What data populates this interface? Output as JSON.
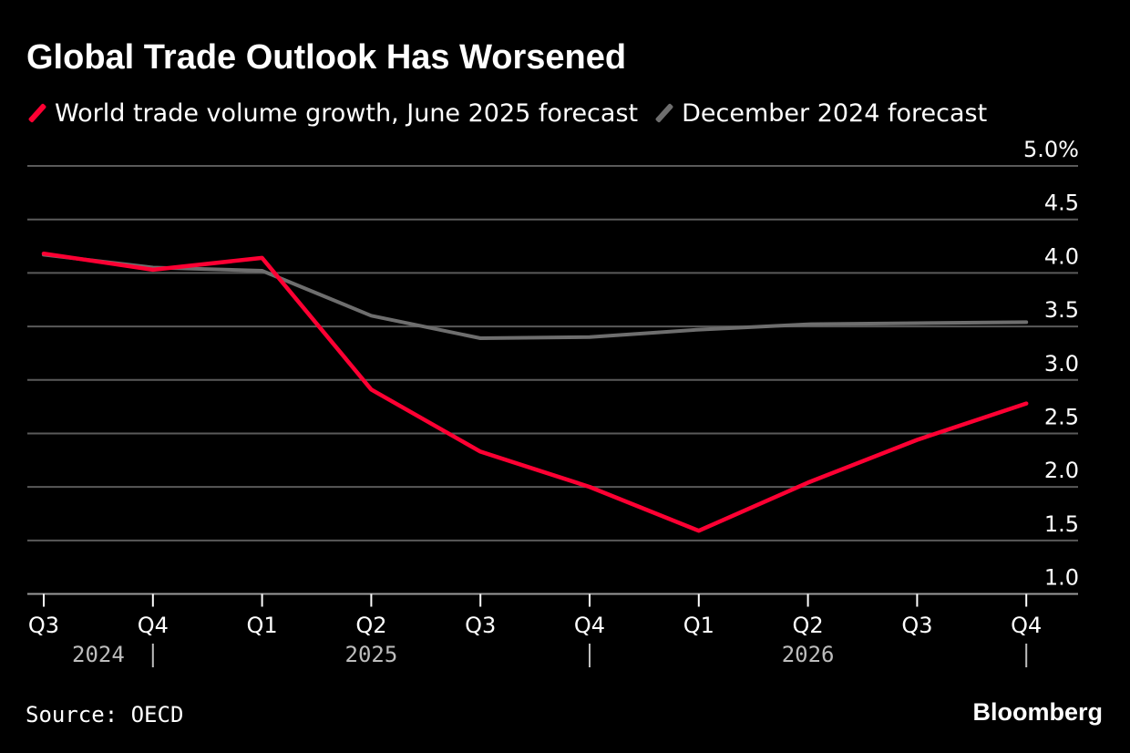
{
  "chart_data": {
    "type": "line",
    "title": "Global Trade Outlook Has Worsened",
    "categories": [
      "Q3",
      "Q4",
      "Q1",
      "Q2",
      "Q3",
      "Q4",
      "Q1",
      "Q2",
      "Q3",
      "Q4"
    ],
    "years": [
      {
        "label": "2024",
        "center_index": 0.5
      },
      {
        "label": "2025",
        "center_index": 3.0
      },
      {
        "label": "2026",
        "center_index": 7.0
      }
    ],
    "year_separators": [
      1,
      5,
      9
    ],
    "series": [
      {
        "name": "World trade volume growth, June 2025 forecast",
        "color": "#ff0033",
        "values": [
          4.18,
          4.03,
          4.14,
          2.91,
          2.33,
          2.0,
          1.59,
          2.04,
          2.44,
          2.78
        ]
      },
      {
        "name": "December 2024 forecast",
        "color": "#6e6e6e",
        "values": [
          4.17,
          4.05,
          4.02,
          3.6,
          3.39,
          3.4,
          3.47,
          3.52,
          3.53,
          3.54
        ]
      }
    ],
    "ylim": [
      0.8,
      5.0
    ],
    "yticks": [
      1.0,
      1.5,
      2.0,
      2.5,
      3.0,
      3.5,
      4.0,
      4.5,
      5.0
    ],
    "ytick_labels": [
      "1.0",
      "1.5",
      "2.0",
      "2.5",
      "3.0",
      "3.5",
      "4.0",
      "4.5",
      "5.0%"
    ],
    "gridlines": [
      1.5,
      2.0,
      2.5,
      3.0,
      3.5,
      4.0,
      4.5,
      5.0
    ],
    "xlabel": "",
    "ylabel": "",
    "legend": "top-left"
  },
  "source": "Source: OECD",
  "brand": "Bloomberg",
  "colors": {
    "background": "#000000",
    "grid": "#5a5a5a",
    "axis": "#9a9a9a"
  }
}
